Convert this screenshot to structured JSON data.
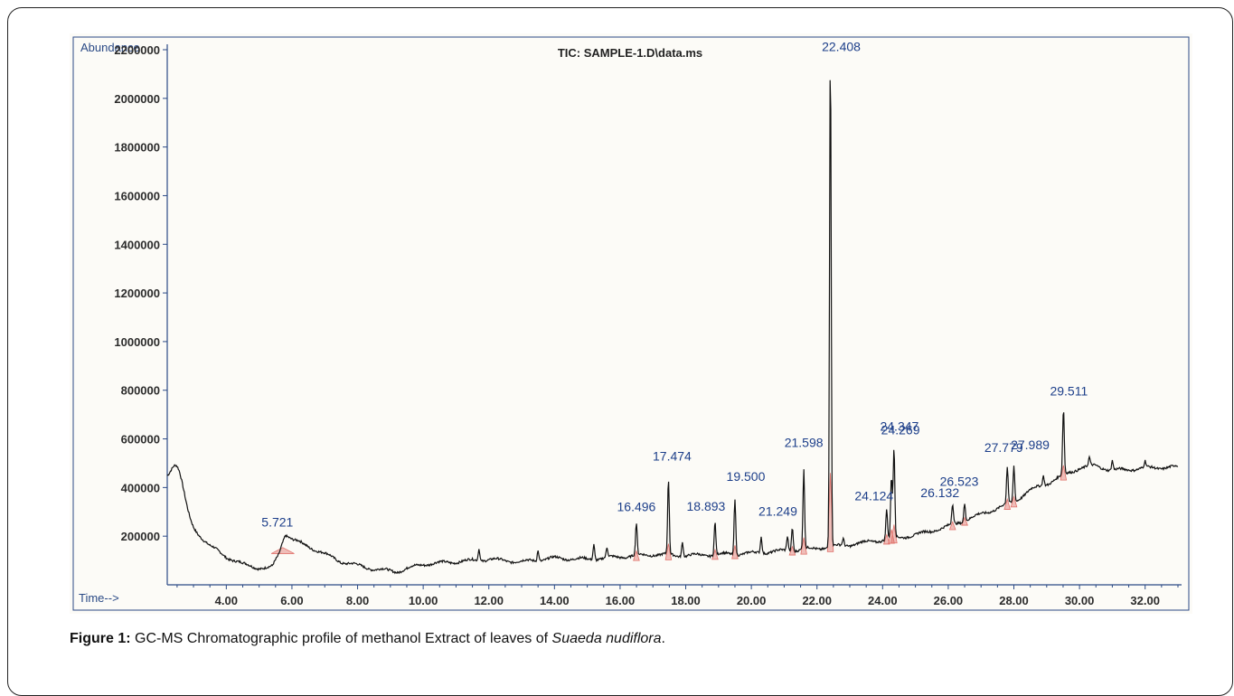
{
  "figure": {
    "caption_label": "Figure 1:",
    "caption_text": " GC-MS Chromatographic profile of methanol Extract of leaves of ",
    "caption_species": "Suaeda nudiflora",
    "caption_end": "."
  },
  "colors": {
    "trace": "#111111",
    "axis": "#2b4a86",
    "tick_text": "#2b2b2b",
    "peak_label": "#1d3f8a",
    "integration": "#e0706a"
  },
  "chart_data": {
    "type": "line",
    "title": "TIC: SAMPLE-1.D\\data.ms",
    "ylabel": "Abundance",
    "xlabel": "Time-->",
    "xlim": [
      2.2,
      33.0
    ],
    "ylim": [
      0,
      2200000
    ],
    "x_ticks": [
      4,
      6,
      8,
      10,
      12,
      14,
      16,
      18,
      20,
      22,
      24,
      26,
      28,
      30,
      32
    ],
    "x_tick_labels": [
      "4.00",
      "6.00",
      "8.00",
      "10.00",
      "12.00",
      "14.00",
      "16.00",
      "18.00",
      "20.00",
      "22.00",
      "24.00",
      "26.00",
      "28.00",
      "30.00",
      "32.00"
    ],
    "y_ticks": [
      200000,
      400000,
      600000,
      800000,
      1000000,
      1200000,
      1400000,
      1600000,
      1800000,
      2000000,
      2200000
    ],
    "y_tick_labels": [
      "200000",
      "400000",
      "600000",
      "800000",
      "1000000",
      "1200000",
      "1400000",
      "1600000",
      "1800000",
      "2000000",
      "2200000"
    ],
    "grid": false,
    "baseline": [
      [
        2.2,
        400000
      ],
      [
        2.5,
        330000
      ],
      [
        3.0,
        230000
      ],
      [
        3.5,
        160000
      ],
      [
        4.0,
        115000
      ],
      [
        4.5,
        85000
      ],
      [
        5.0,
        70000
      ],
      [
        5.4,
        65000
      ],
      [
        5.6,
        100000
      ],
      [
        5.8,
        180000
      ],
      [
        6.2,
        175000
      ],
      [
        6.8,
        140000
      ],
      [
        7.5,
        95000
      ],
      [
        8.5,
        65000
      ],
      [
        9.2,
        55000
      ],
      [
        10.0,
        85000
      ],
      [
        11.0,
        95000
      ],
      [
        12.0,
        105000
      ],
      [
        13.0,
        95000
      ],
      [
        14.0,
        110000
      ],
      [
        15.0,
        105000
      ],
      [
        16.0,
        115000
      ],
      [
        17.0,
        125000
      ],
      [
        18.0,
        120000
      ],
      [
        19.0,
        125000
      ],
      [
        20.0,
        130000
      ],
      [
        21.0,
        140000
      ],
      [
        22.0,
        150000
      ],
      [
        23.0,
        165000
      ],
      [
        24.0,
        185000
      ],
      [
        25.0,
        205000
      ],
      [
        26.0,
        240000
      ],
      [
        27.0,
        290000
      ],
      [
        28.0,
        340000
      ],
      [
        28.5,
        390000
      ],
      [
        29.0,
        415000
      ],
      [
        29.5,
        450000
      ],
      [
        30.0,
        480000
      ],
      [
        30.5,
        490000
      ],
      [
        31.0,
        470000
      ],
      [
        32.0,
        480000
      ],
      [
        33.0,
        485000
      ]
    ],
    "peaks": [
      {
        "x": 2.5,
        "y": 490000
      },
      {
        "x": 5.721,
        "y": 180000,
        "label": "5.721"
      },
      {
        "x": 11.7,
        "y": 150000
      },
      {
        "x": 13.5,
        "y": 145000
      },
      {
        "x": 15.2,
        "y": 170000
      },
      {
        "x": 15.6,
        "y": 150000
      },
      {
        "x": 16.496,
        "y": 250000,
        "label": "16.496"
      },
      {
        "x": 17.474,
        "y": 430000,
        "label": "17.474"
      },
      {
        "x": 17.9,
        "y": 180000
      },
      {
        "x": 18.893,
        "y": 260000,
        "label": "18.893"
      },
      {
        "x": 19.5,
        "y": 360000,
        "label": "19.500"
      },
      {
        "x": 20.3,
        "y": 200000
      },
      {
        "x": 21.1,
        "y": 200000
      },
      {
        "x": 21.249,
        "y": 240000,
        "label": "21.249"
      },
      {
        "x": 21.598,
        "y": 470000,
        "label": "21.598"
      },
      {
        "x": 22.408,
        "y": 2180000,
        "label": "22.408"
      },
      {
        "x": 22.8,
        "y": 190000
      },
      {
        "x": 24.124,
        "y": 310000,
        "label": "24.124"
      },
      {
        "x": 24.269,
        "y": 440000,
        "label": "24.269"
      },
      {
        "x": 24.347,
        "y": 560000,
        "label": "24.347"
      },
      {
        "x": 26.132,
        "y": 330000,
        "label": "26.132"
      },
      {
        "x": 26.5,
        "y": 340000,
        "label": "26.523"
      },
      {
        "x": 27.8,
        "y": 480000,
        "label": "27.779"
      },
      {
        "x": 28.0,
        "y": 490000,
        "label": "27.989"
      },
      {
        "x": 28.9,
        "y": 450000
      },
      {
        "x": 29.511,
        "y": 720000,
        "label": "29.511"
      },
      {
        "x": 30.3,
        "y": 520000
      },
      {
        "x": 31.0,
        "y": 510000
      },
      {
        "x": 32.0,
        "y": 505000
      }
    ]
  }
}
